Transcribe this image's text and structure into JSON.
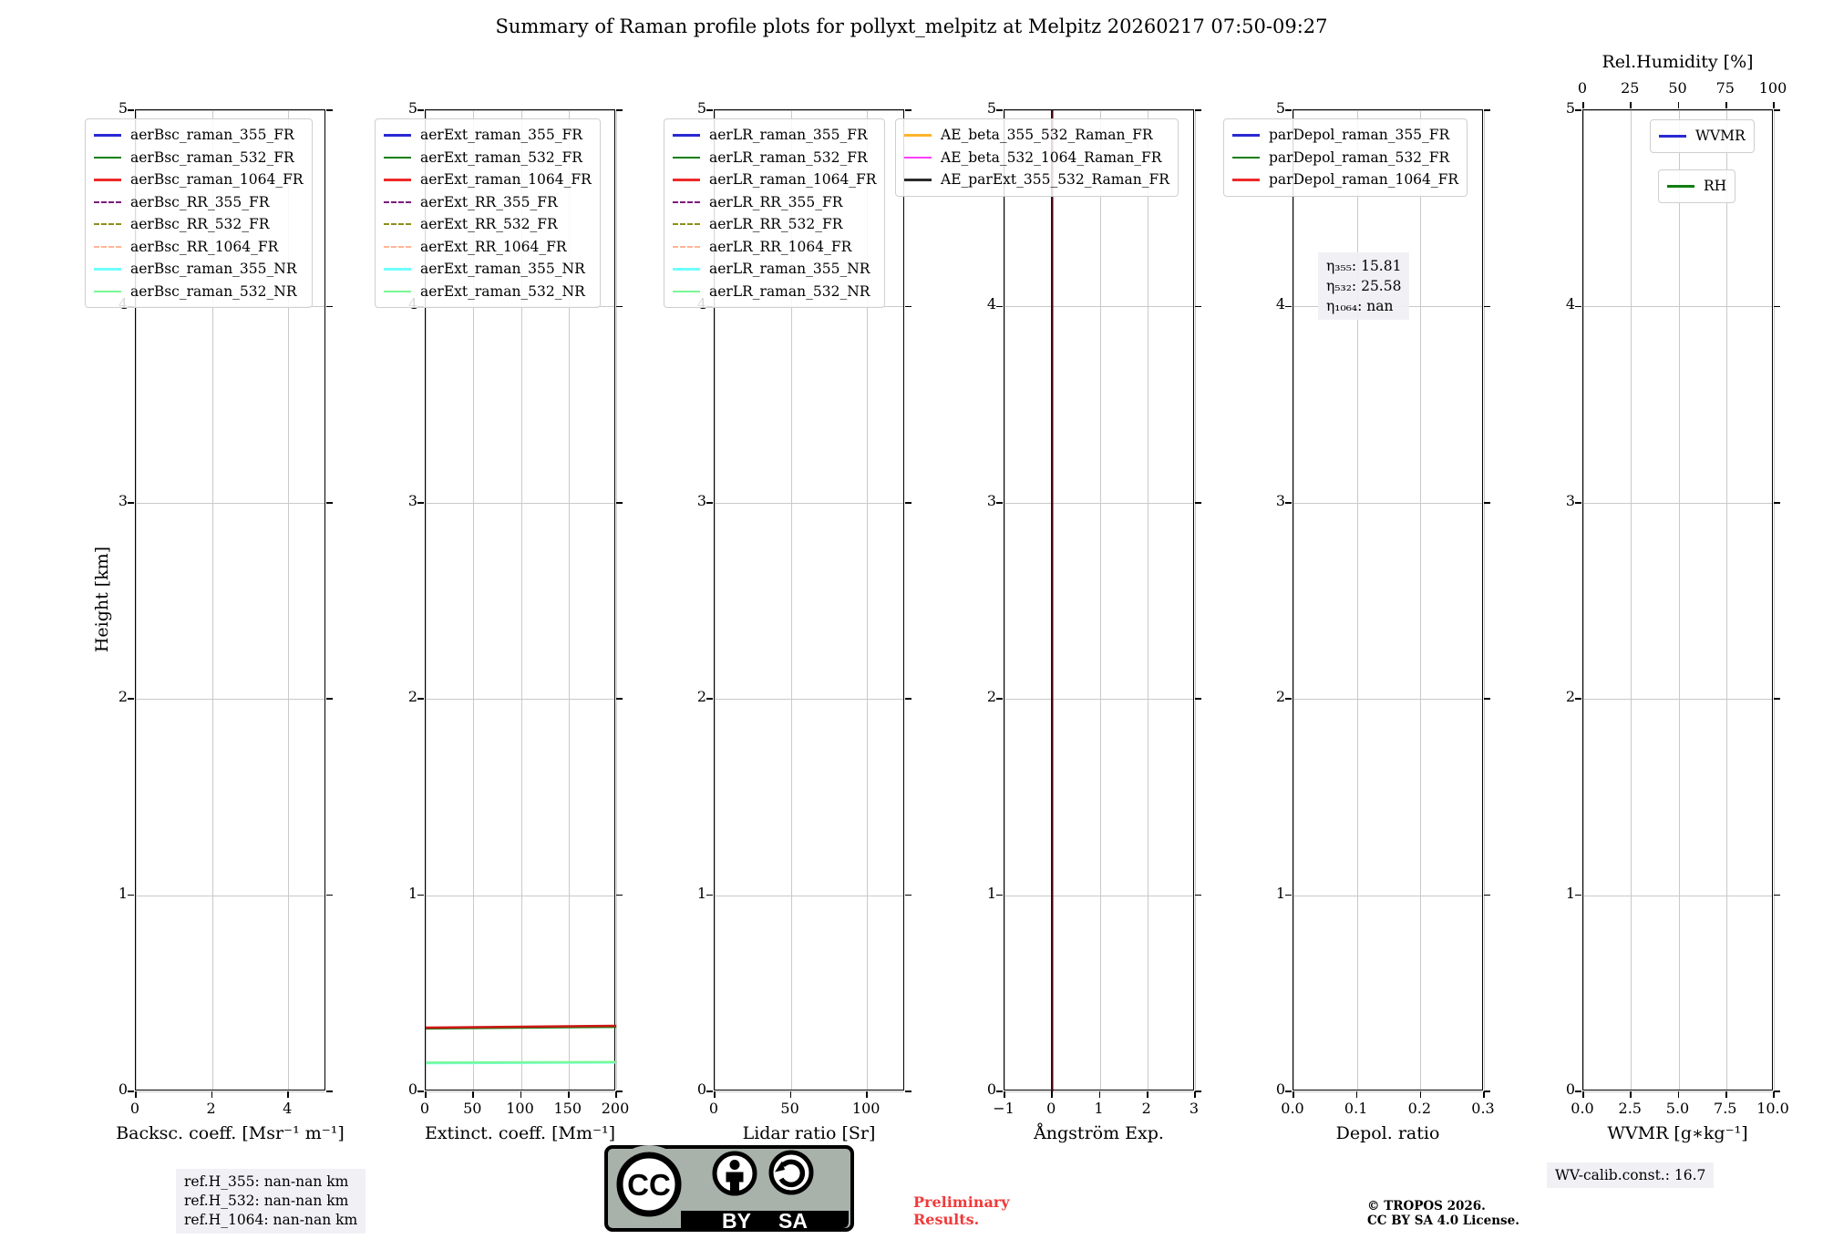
{
  "chart_data": {
    "type": "line",
    "title": "Summary of Raman profile plots for pollyxt_melpitz at Melpitz 20260217 07:50-09:27",
    "ylabel": "Height [km]",
    "ylim": [
      0,
      5
    ],
    "y_ticks": [
      0,
      1,
      2,
      3,
      4,
      5
    ],
    "y_tick_labels": [
      "0",
      "1",
      "2",
      "3",
      "4",
      "5"
    ],
    "grid": true,
    "panels": [
      {
        "id": "backscatter",
        "xlabel": "Backsc. coeff. [Msr⁻¹ m⁻¹]",
        "x_range": [
          0,
          5
        ],
        "x_tick_values": [
          0,
          2,
          4
        ],
        "x_tick_labels": [
          "0",
          "2",
          "4"
        ],
        "legend": [
          {
            "label": "aerBsc_raman_355_FR",
            "color": "#2929d4",
            "dash": false
          },
          {
            "label": "aerBsc_raman_532_FR",
            "color": "#0e7e0e",
            "dash": false
          },
          {
            "label": "aerBsc_raman_1064_FR",
            "color": "#ee2a2a",
            "dash": false
          },
          {
            "label": "aerBsc_RR_355_FR",
            "color": "#7c1b7c",
            "dash": true
          },
          {
            "label": "aerBsc_RR_532_FR",
            "color": "#8e8e1a",
            "dash": true
          },
          {
            "label": "aerBsc_RR_1064_FR",
            "color": "#ffb596",
            "dash": true
          },
          {
            "label": "aerBsc_raman_355_NR",
            "color": "#70ffff",
            "dash": false
          },
          {
            "label": "aerBsc_raman_532_NR",
            "color": "#79f896",
            "dash": false
          }
        ],
        "series": []
      },
      {
        "id": "extinction",
        "xlabel": "Extinct. coeff. [Mm⁻¹]",
        "x_range": [
          0,
          200
        ],
        "x_tick_values": [
          0,
          50,
          100,
          150,
          200
        ],
        "x_tick_labels": [
          "0",
          "50",
          "100",
          "150",
          "200"
        ],
        "legend": [
          {
            "label": "aerExt_raman_355_FR",
            "color": "#2929d4",
            "dash": false
          },
          {
            "label": "aerExt_raman_532_FR",
            "color": "#0e7e0e",
            "dash": false
          },
          {
            "label": "aerExt_raman_1064_FR",
            "color": "#ee2a2a",
            "dash": false
          },
          {
            "label": "aerExt_RR_355_FR",
            "color": "#7c1b7c",
            "dash": true
          },
          {
            "label": "aerExt_RR_532_FR",
            "color": "#8e8e1a",
            "dash": true
          },
          {
            "label": "aerExt_RR_1064_FR",
            "color": "#ffb596",
            "dash": true
          },
          {
            "label": "aerExt_raman_355_NR",
            "color": "#70ffff",
            "dash": false
          },
          {
            "label": "aerExt_raman_532_NR",
            "color": "#79f896",
            "dash": false
          }
        ],
        "series": [
          {
            "name": "aerExt_raman_532_FR",
            "color": "#0e7e0e",
            "width": 2,
            "points": [
              [
                0,
                0.32
              ],
              [
                200,
                0.328
              ]
            ]
          },
          {
            "name": "aerExt_raman_1064_FR",
            "color": "#cf1717",
            "width": 2.5,
            "points": [
              [
                0,
                0.325
              ],
              [
                200,
                0.334
              ]
            ]
          },
          {
            "name": "aerExt_raman_355_NR",
            "color": "#70ffff",
            "width": 2,
            "points": [
              [
                0,
                0.143
              ],
              [
                200,
                0.146
              ]
            ]
          },
          {
            "name": "aerExt_raman_532_NR",
            "color": "#79f896",
            "width": 2.5,
            "points": [
              [
                0,
                0.147
              ],
              [
                200,
                0.15
              ]
            ]
          }
        ]
      },
      {
        "id": "lidar_ratio",
        "xlabel": "Lidar ratio [Sr]",
        "x_range": [
          0,
          125
        ],
        "x_tick_values": [
          0,
          50,
          100
        ],
        "x_tick_labels": [
          "0",
          "50",
          "100"
        ],
        "legend": [
          {
            "label": "aerLR_raman_355_FR",
            "color": "#2929d4",
            "dash": false
          },
          {
            "label": "aerLR_raman_532_FR",
            "color": "#0e7e0e",
            "dash": false
          },
          {
            "label": "aerLR_raman_1064_FR",
            "color": "#ee2a2a",
            "dash": false
          },
          {
            "label": "aerLR_RR_355_FR",
            "color": "#7c1b7c",
            "dash": true
          },
          {
            "label": "aerLR_RR_532_FR",
            "color": "#8e8e1a",
            "dash": true
          },
          {
            "label": "aerLR_RR_1064_FR",
            "color": "#ffb596",
            "dash": true
          },
          {
            "label": "aerLR_raman_355_NR",
            "color": "#70ffff",
            "dash": false
          },
          {
            "label": "aerLR_raman_532_NR",
            "color": "#79f896",
            "dash": false
          }
        ],
        "series": []
      },
      {
        "id": "angstrom",
        "xlabel": "Ångström Exp.",
        "x_range": [
          -1,
          3
        ],
        "x_tick_values": [
          -1,
          0,
          1,
          2,
          3
        ],
        "x_tick_labels": [
          "−1",
          "0",
          "1",
          "2",
          "3"
        ],
        "legend": [
          {
            "label": "AE_beta_355_532_Raman_FR",
            "color": "#ffb42a",
            "dash": false
          },
          {
            "label": "AE_beta_532_1064_Raman_FR",
            "color": "#fb3ffb",
            "dash": false
          },
          {
            "label": "AE_parExt_355_532_Raman_FR",
            "color": "#2b2b2b",
            "dash": false
          }
        ],
        "series": [
          {
            "name": "AE_profiles_overlapping_at_0",
            "color": "#45000f",
            "width": 2.5,
            "points": [
              [
                0,
                0
              ],
              [
                0,
                5
              ]
            ]
          }
        ]
      },
      {
        "id": "depol",
        "xlabel": "Depol. ratio",
        "x_range": [
          0,
          0.3
        ],
        "x_tick_values": [
          0,
          0.1,
          0.2,
          0.3
        ],
        "x_tick_labels": [
          "0.0",
          "0.1",
          "0.2",
          "0.3"
        ],
        "legend": [
          {
            "label": "parDepol_raman_355_FR",
            "color": "#2929d4",
            "dash": false
          },
          {
            "label": "parDepol_raman_532_FR",
            "color": "#0e7e0e",
            "dash": false
          },
          {
            "label": "parDepol_raman_1064_FR",
            "color": "#ee2a2a",
            "dash": false
          }
        ],
        "series": []
      },
      {
        "id": "wvmr",
        "xlabel": "WVMR [g∗kg⁻¹]",
        "x_range": [
          0,
          10
        ],
        "x_tick_values": [
          0,
          2.5,
          5,
          7.5,
          10
        ],
        "x_tick_labels": [
          "0.0",
          "2.5",
          "5.0",
          "7.5",
          "10.0"
        ],
        "top_axis": {
          "label": "Rel.Humidity [%]",
          "range": [
            0,
            100
          ],
          "tick_values": [
            0,
            25,
            50,
            75,
            100
          ],
          "tick_labels": [
            "0",
            "25",
            "50",
            "75",
            "100"
          ]
        },
        "legend": [
          {
            "label": "WVMR",
            "color": "#2929d4",
            "dash": false
          },
          {
            "label": "RH",
            "color": "#0e7e0e",
            "dash": false
          }
        ],
        "series": []
      }
    ]
  },
  "annotations": {
    "eta_lines": [
      "η₃₅₅: 15.81",
      "η₅₃₂: 25.58",
      "η₁₀₆₄: nan"
    ],
    "ref_h_lines": [
      "ref.H_355: nan-nan km",
      "ref.H_532: nan-nan km",
      "ref.H_1064: nan-nan km"
    ],
    "wv_calib": "WV-calib.const.: 16.7",
    "preliminary_lines": [
      "Preliminary",
      "Results."
    ],
    "copyright_lines": [
      "© TROPOS 2026.",
      "CC BY SA 4.0 License."
    ],
    "cc_badge": {
      "cc": "CC",
      "by": "BY",
      "sa": "SA"
    }
  }
}
